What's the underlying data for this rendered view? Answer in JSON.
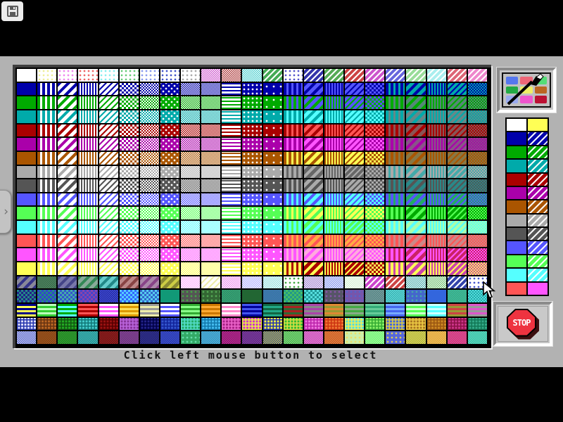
{
  "ui": {
    "caption": "Click left mouse button to select",
    "stop_label": "STOP",
    "icons": {
      "save": "floppy-disk-icon",
      "palette_button": "paintbrush-palette-icon",
      "stop_button": "stop-sign-icon",
      "left_tab": "chevron-right-icon",
      "pointer": "arrow-cursor-icon"
    },
    "colors": {
      "background": "#000000",
      "panel_gray": "#b2b2b2",
      "grid_bevel_dark": "#3f3f3f",
      "grid_bevel_light": "#eeeeee",
      "button_face": "#c6c6c6",
      "stop_red": "#ee3340"
    }
  },
  "palette_button": {
    "squares": [
      "#5577ee",
      "#ee6677",
      "#55dd77",
      "#22aa44",
      "#eeee66",
      "#bb6622",
      "#99aaee",
      "#ee55cc",
      "#bb1133"
    ]
  },
  "side_palette": {
    "rows": [
      {
        "left": "#ffffff",
        "right": "#ffff55",
        "hatch": false
      },
      {
        "left": "#0000aa",
        "right": "#0000aa",
        "hatch": true
      },
      {
        "left": "#00aa00",
        "right": "#00aa00",
        "hatch": true
      },
      {
        "left": "#00aaaa",
        "right": "#00aaaa",
        "hatch": true
      },
      {
        "left": "#aa0000",
        "right": "#aa0000",
        "hatch": true
      },
      {
        "left": "#aa00aa",
        "right": "#aa00aa",
        "hatch": true
      },
      {
        "left": "#aa5500",
        "right": "#aa5500",
        "hatch": true
      },
      {
        "left": "#aaaaaa",
        "right": "#aaaaaa",
        "hatch": true
      },
      {
        "left": "#555555",
        "right": "#555555",
        "hatch": true
      },
      {
        "left": "#5555ff",
        "right": "#5555ff",
        "hatch": true
      },
      {
        "left": "#55ff55",
        "right": "#55ff55",
        "hatch": true
      },
      {
        "left": "#55ffff",
        "right": "#55ffff",
        "hatch": true
      },
      {
        "left": "#ff5555",
        "right": "#ff55ff",
        "hatch": false
      }
    ]
  },
  "grid": {
    "pattern_columns": [
      {
        "p": "solid",
        "m": "self"
      },
      {
        "p": "vstripe",
        "m": "W"
      },
      {
        "p": "diag",
        "m": "W"
      },
      {
        "p": "vstripe2",
        "m": "W"
      },
      {
        "p": "diag2",
        "m": "W"
      },
      {
        "p": "check",
        "m": "W"
      },
      {
        "p": "check2",
        "m": "W"
      },
      {
        "p": "dotlattice",
        "m": "W"
      },
      {
        "p": "dither",
        "m": "W"
      },
      {
        "p": "dither2",
        "m": "W"
      },
      {
        "p": "hdash",
        "m": "W"
      },
      {
        "p": "dots",
        "m": "W"
      },
      {
        "p": "dots2",
        "m": "W"
      },
      {
        "p": "vstripe",
        "m": "A"
      },
      {
        "p": "diag",
        "m": "A"
      },
      {
        "p": "vstripe2",
        "m": "A"
      },
      {
        "p": "diag2",
        "m": "A"
      },
      {
        "p": "check",
        "m": "A"
      },
      {
        "p": "vstripe",
        "m": "B"
      },
      {
        "p": "diag",
        "m": "B"
      },
      {
        "p": "vstripe2",
        "m": "B"
      },
      {
        "p": "diag2",
        "m": "B"
      },
      {
        "p": "check2",
        "m": "B"
      }
    ],
    "color_rows": [
      {
        "base": "#0000aa",
        "A": "#5555ff",
        "B": "#00aaaa"
      },
      {
        "base": "#00aa00",
        "A": "#5555ff",
        "B": "#558877"
      },
      {
        "base": "#00aaaa",
        "A": "#55ffff",
        "B": "#668888"
      },
      {
        "base": "#aa0000",
        "A": "#ff5555",
        "B": "#885555"
      },
      {
        "base": "#aa00aa",
        "A": "#ff55ff",
        "B": "#885588"
      },
      {
        "base": "#aa5500",
        "A": "#ffff55",
        "B": "#887744"
      },
      {
        "base": "#aaaaaa",
        "A": "#666666",
        "B": "#44aaaa"
      },
      {
        "base": "#555555",
        "A": "#aaaaaa",
        "B": "#2a8888"
      },
      {
        "base": "#5555ff",
        "A": "#55ffff",
        "B": "#22aa66"
      },
      {
        "base": "#55ff55",
        "A": "#ffff55",
        "B": "#00aa00"
      },
      {
        "base": "#55ffff",
        "A": "#55ff55",
        "B": "#aaffaa"
      },
      {
        "base": "#ff5555",
        "A": "#ffaa44",
        "B": "#cc8888"
      },
      {
        "base": "#ff55ff",
        "A": "#ffaadd",
        "B": "#cc2266"
      },
      {
        "base": "#ffff55",
        "A": "#aa0000",
        "B": "#cc44aa"
      }
    ],
    "top_row": [
      {
        "t": "solid",
        "a": "#ffffff",
        "b": "#ffffff"
      },
      {
        "t": "dots",
        "a": "#ffffff",
        "b": "#eeee99"
      },
      {
        "t": "dots",
        "a": "#ffffff",
        "b": "#ee88ee"
      },
      {
        "t": "dots",
        "a": "#ffffff",
        "b": "#ee6666"
      },
      {
        "t": "dots",
        "a": "#ffffff",
        "b": "#88eeee"
      },
      {
        "t": "dots",
        "a": "#ffffff",
        "b": "#66cc77"
      },
      {
        "t": "dots",
        "a": "#ffffff",
        "b": "#8899ee"
      },
      {
        "t": "dots",
        "a": "#ffffff",
        "b": "#4455cc"
      },
      {
        "t": "dots",
        "a": "#ffffff",
        "b": "#aaaaaa"
      },
      {
        "t": "dither",
        "a": "#ffffff",
        "b": "#cc55cc"
      },
      {
        "t": "dither",
        "a": "#ffffff",
        "b": "#aa3333"
      },
      {
        "t": "dither",
        "a": "#ffffff",
        "b": "#44cccc"
      },
      {
        "t": "diag2",
        "a": "#ffffff",
        "b": "#44aa55"
      },
      {
        "t": "dots",
        "a": "#ffffff",
        "b": "#5555cc"
      },
      {
        "t": "diag2",
        "a": "#ffffff",
        "b": "#3333aa"
      },
      {
        "t": "diag2",
        "a": "#ffffff",
        "b": "#55aa55"
      },
      {
        "t": "diag2",
        "a": "#ffffff",
        "b": "#cc4444"
      },
      {
        "t": "diag2",
        "a": "#ffffff",
        "b": "#cc55cc"
      },
      {
        "t": "diag2",
        "a": "#ffffff",
        "b": "#6666dd"
      },
      {
        "t": "diag2",
        "a": "#ffffff",
        "b": "#99dd99"
      },
      {
        "t": "diag2",
        "a": "#ffffff",
        "b": "#aaeeee"
      },
      {
        "t": "diag2",
        "a": "#ffffff",
        "b": "#dd6677"
      },
      {
        "t": "diag2",
        "a": "#ffffff",
        "b": "#ee88cc"
      }
    ],
    "bottom_rows": [
      [
        {
          "t": "diag",
          "a": "#333388",
          "b": "#888899"
        },
        {
          "t": "dither",
          "a": "#336644",
          "b": "#558866"
        },
        {
          "t": "diag",
          "a": "#444488",
          "b": "#7777aa"
        },
        {
          "t": "diag",
          "a": "#338855",
          "b": "#88aa99"
        },
        {
          "t": "diag",
          "a": "#228888",
          "b": "#66cccc"
        },
        {
          "t": "diag",
          "a": "#884444",
          "b": "#bb8888"
        },
        {
          "t": "diag",
          "a": "#884488",
          "b": "#aa88aa"
        },
        {
          "t": "diag",
          "a": "#cccc44",
          "b": "#888833"
        },
        {
          "t": "dither",
          "a": "#ffaaff",
          "b": "#ffffff"
        },
        {
          "t": "diag2",
          "a": "#eeeeaa",
          "b": "#ffffff"
        },
        {
          "t": "dither",
          "a": "#ee88ee",
          "b": "#ffffff"
        },
        {
          "t": "dither",
          "a": "#aaaaff",
          "b": "#ffffff"
        },
        {
          "t": "dither",
          "a": "#88dddd",
          "b": "#ffffff"
        },
        {
          "t": "dots",
          "a": "#ffffff",
          "b": "#44aa44"
        },
        {
          "t": "dither",
          "a": "#9977cc",
          "b": "#ffffff"
        },
        {
          "t": "dither",
          "a": "#7788ee",
          "b": "#ffffff"
        },
        {
          "t": "dither",
          "a": "#cceecc",
          "b": "#ffffff"
        },
        {
          "t": "diag2",
          "a": "#ffffff",
          "b": "#cc44cc"
        },
        {
          "t": "diag2",
          "a": "#ffffff",
          "b": "#cc4444"
        },
        {
          "t": "dither",
          "a": "#44aaaa",
          "b": "#ffffff"
        },
        {
          "t": "dither",
          "a": "#66bb66",
          "b": "#ffffff"
        },
        {
          "t": "diag2",
          "a": "#ffffff",
          "b": "#3344aa"
        },
        {
          "t": "dots",
          "a": "#ffffff",
          "b": "#4455cc"
        }
      ],
      [
        {
          "t": "check",
          "a": "#222288",
          "b": "#228888"
        },
        {
          "t": "check",
          "a": "#228888",
          "b": "#3344cc"
        },
        {
          "t": "check",
          "a": "#3355cc",
          "b": "#44aaaa"
        },
        {
          "t": "check",
          "a": "#4444cc",
          "b": "#8844aa"
        },
        {
          "t": "dither",
          "a": "#222299",
          "b": "#4455dd"
        },
        {
          "t": "check",
          "a": "#3366ff",
          "b": "#55ccff"
        },
        {
          "t": "check",
          "a": "#55ccee",
          "b": "#3366cc"
        },
        {
          "t": "solid",
          "a": "#119977",
          "b": "#119977"
        },
        {
          "t": "dots",
          "a": "#555555",
          "b": "#44aa44"
        },
        {
          "t": "dots",
          "a": "#336633",
          "b": "#55aa55"
        },
        {
          "t": "dither",
          "a": "#44aa66",
          "b": "#228877"
        },
        {
          "t": "solid",
          "a": "#226633",
          "b": "#226633"
        },
        {
          "t": "dither",
          "a": "#338899",
          "b": "#4466bb"
        },
        {
          "t": "check",
          "a": "#44bb66",
          "b": "#229988"
        },
        {
          "t": "check",
          "a": "#229999",
          "b": "#55dddd"
        },
        {
          "t": "dots",
          "a": "#555566",
          "b": "#8855aa"
        },
        {
          "t": "dots",
          "a": "#7755aa",
          "b": "#5566cc"
        },
        {
          "t": "dither",
          "a": "#448888",
          "b": "#889999"
        },
        {
          "t": "dither",
          "a": "#33aaaa",
          "b": "#66dddd"
        },
        {
          "t": "dots",
          "a": "#4466cc",
          "b": "#44aaaa"
        },
        {
          "t": "solid",
          "a": "#3366dd",
          "b": "#3366dd"
        },
        {
          "t": "dither",
          "a": "#44aa77",
          "b": "#33bbaa"
        },
        {
          "t": "check2",
          "a": "#55dddd",
          "b": "#22aaaa"
        }
      ],
      [
        {
          "t": "hstripe",
          "a": "#ffff55",
          "b": "#000088"
        },
        {
          "t": "hstripe",
          "a": "#33cc33",
          "b": "#bbffbb"
        },
        {
          "t": "hstripe",
          "a": "#55ffff",
          "b": "#00aa00"
        },
        {
          "t": "hstripe",
          "a": "#aa0000",
          "b": "#ff5555"
        },
        {
          "t": "hstripe",
          "a": "#ff55ff",
          "b": "#ffffff"
        },
        {
          "t": "hstripe",
          "a": "#dd9900",
          "b": "#ffdd55"
        },
        {
          "t": "hstripe",
          "a": "#eeeeaa",
          "b": "#999999"
        },
        {
          "t": "hstripe",
          "a": "#5555ff",
          "b": "#ffffff"
        },
        {
          "t": "hstripe",
          "a": "#88ff88",
          "b": "#33aa33"
        },
        {
          "t": "hstripe",
          "a": "#ffaa33",
          "b": "#cc7700"
        },
        {
          "t": "hstripe",
          "a": "#ff88cc",
          "b": "#ffffff"
        },
        {
          "t": "hstripe",
          "a": "#000099",
          "b": "#4455ee"
        },
        {
          "t": "hstripe",
          "a": "#22aa88",
          "b": "#116644"
        },
        {
          "t": "hstripe",
          "a": "#aa2222",
          "b": "#336633"
        },
        {
          "t": "hstripe",
          "a": "#888888",
          "b": "#aa44aa"
        },
        {
          "t": "hstripe",
          "a": "#999933",
          "b": "#dd8833"
        },
        {
          "t": "hstripe",
          "a": "#44aa44",
          "b": "#88aa88"
        },
        {
          "t": "hstripe",
          "a": "#33aa77",
          "b": "#66cc99"
        },
        {
          "t": "hstripe",
          "a": "#4466ee",
          "b": "#77aaff"
        },
        {
          "t": "hstripe",
          "a": "#55ff55",
          "b": "#ccffcc"
        },
        {
          "t": "hstripe",
          "a": "#55ffff",
          "b": "#ccffff"
        },
        {
          "t": "hstripe",
          "a": "#999933",
          "b": "#cc4444"
        },
        {
          "t": "hstripe",
          "a": "#999999",
          "b": "#dd55cc"
        }
      ],
      [
        {
          "t": "plaid",
          "a": "#ddddff",
          "b": "#2233aa"
        },
        {
          "t": "plaid",
          "a": "#bb6622",
          "b": "#663311"
        },
        {
          "t": "plaid",
          "a": "#22aa22",
          "b": "#115511"
        },
        {
          "t": "plaid",
          "a": "#44cccc",
          "b": "#117777"
        },
        {
          "t": "plaid",
          "a": "#991111",
          "b": "#550000"
        },
        {
          "t": "plaid",
          "a": "#883399",
          "b": "#bb66dd"
        },
        {
          "t": "plaid",
          "a": "#222288",
          "b": "#000044"
        },
        {
          "t": "plaid",
          "a": "#3355cc",
          "b": "#112299"
        },
        {
          "t": "plaid",
          "a": "#22aa66",
          "b": "#55ddcc"
        },
        {
          "t": "plaid",
          "a": "#44bbee",
          "b": "#1177aa"
        },
        {
          "t": "plaid",
          "a": "#aa2288",
          "b": "#ee66cc"
        },
        {
          "t": "plaid",
          "a": "#cc33cc",
          "b": "#eeee44"
        },
        {
          "t": "plaid",
          "a": "#eeee44",
          "b": "#2233aa"
        },
        {
          "t": "plaid",
          "a": "#33bb33",
          "b": "#dddd44"
        },
        {
          "t": "plaid",
          "a": "#ee77dd",
          "b": "#bb22aa"
        },
        {
          "t": "plaid",
          "a": "#ee7733",
          "b": "#cc3311"
        },
        {
          "t": "plaid",
          "a": "#55dddd",
          "b": "#eeee55"
        },
        {
          "t": "plaid",
          "a": "#88ee66",
          "b": "#33aa33"
        },
        {
          "t": "plaid",
          "a": "#4466dd",
          "b": "#ddcc44"
        },
        {
          "t": "plaid",
          "a": "#aa7722",
          "b": "#eecc44"
        },
        {
          "t": "plaid",
          "a": "#cc8822",
          "b": "#995511"
        },
        {
          "t": "plaid",
          "a": "#cc3388",
          "b": "#881144"
        },
        {
          "t": "plaid",
          "a": "#33aa88",
          "b": "#117755"
        }
      ],
      [
        {
          "t": "dither",
          "a": "#5566cc",
          "b": "#ccccee"
        },
        {
          "t": "dither",
          "a": "#aa5522",
          "b": "#774411"
        },
        {
          "t": "dither",
          "a": "#33aa33",
          "b": "#227722"
        },
        {
          "t": "dither",
          "a": "#44bbbb",
          "b": "#228888"
        },
        {
          "t": "dither",
          "a": "#992222",
          "b": "#661111"
        },
        {
          "t": "dither",
          "a": "#884499",
          "b": "#663377"
        },
        {
          "t": "dither",
          "a": "#333399",
          "b": "#222266"
        },
        {
          "t": "dither",
          "a": "#4455cc",
          "b": "#2233aa"
        },
        {
          "t": "dots",
          "a": "#33aa66",
          "b": "#66ddaa"
        },
        {
          "t": "dither",
          "a": "#55bbdd",
          "b": "#3388bb"
        },
        {
          "t": "dither",
          "a": "#bb3399",
          "b": "#881166"
        },
        {
          "t": "dither",
          "a": "#8844aa",
          "b": "#552277"
        },
        {
          "t": "dither",
          "a": "#dddd44",
          "b": "#223399"
        },
        {
          "t": "dither",
          "a": "#44aa44",
          "b": "#88dd88"
        },
        {
          "t": "dither",
          "a": "#ee88dd",
          "b": "#bb44aa"
        },
        {
          "t": "dither",
          "a": "#ee8844",
          "b": "#bb5522"
        },
        {
          "t": "dots",
          "a": "#cceeaa",
          "b": "#eedd66"
        },
        {
          "t": "dither",
          "a": "#66ee66",
          "b": "#aaffaa"
        },
        {
          "t": "dots",
          "a": "#5566dd",
          "b": "#ddcc55"
        },
        {
          "t": "dither",
          "a": "#aaaa33",
          "b": "#dddd66"
        },
        {
          "t": "dither",
          "a": "#dd9933",
          "b": "#eecc66"
        },
        {
          "t": "dither",
          "a": "#dd4444",
          "b": "#cc44cc"
        },
        {
          "t": "dither",
          "a": "#44bb88",
          "b": "#55dddd"
        }
      ]
    ]
  }
}
